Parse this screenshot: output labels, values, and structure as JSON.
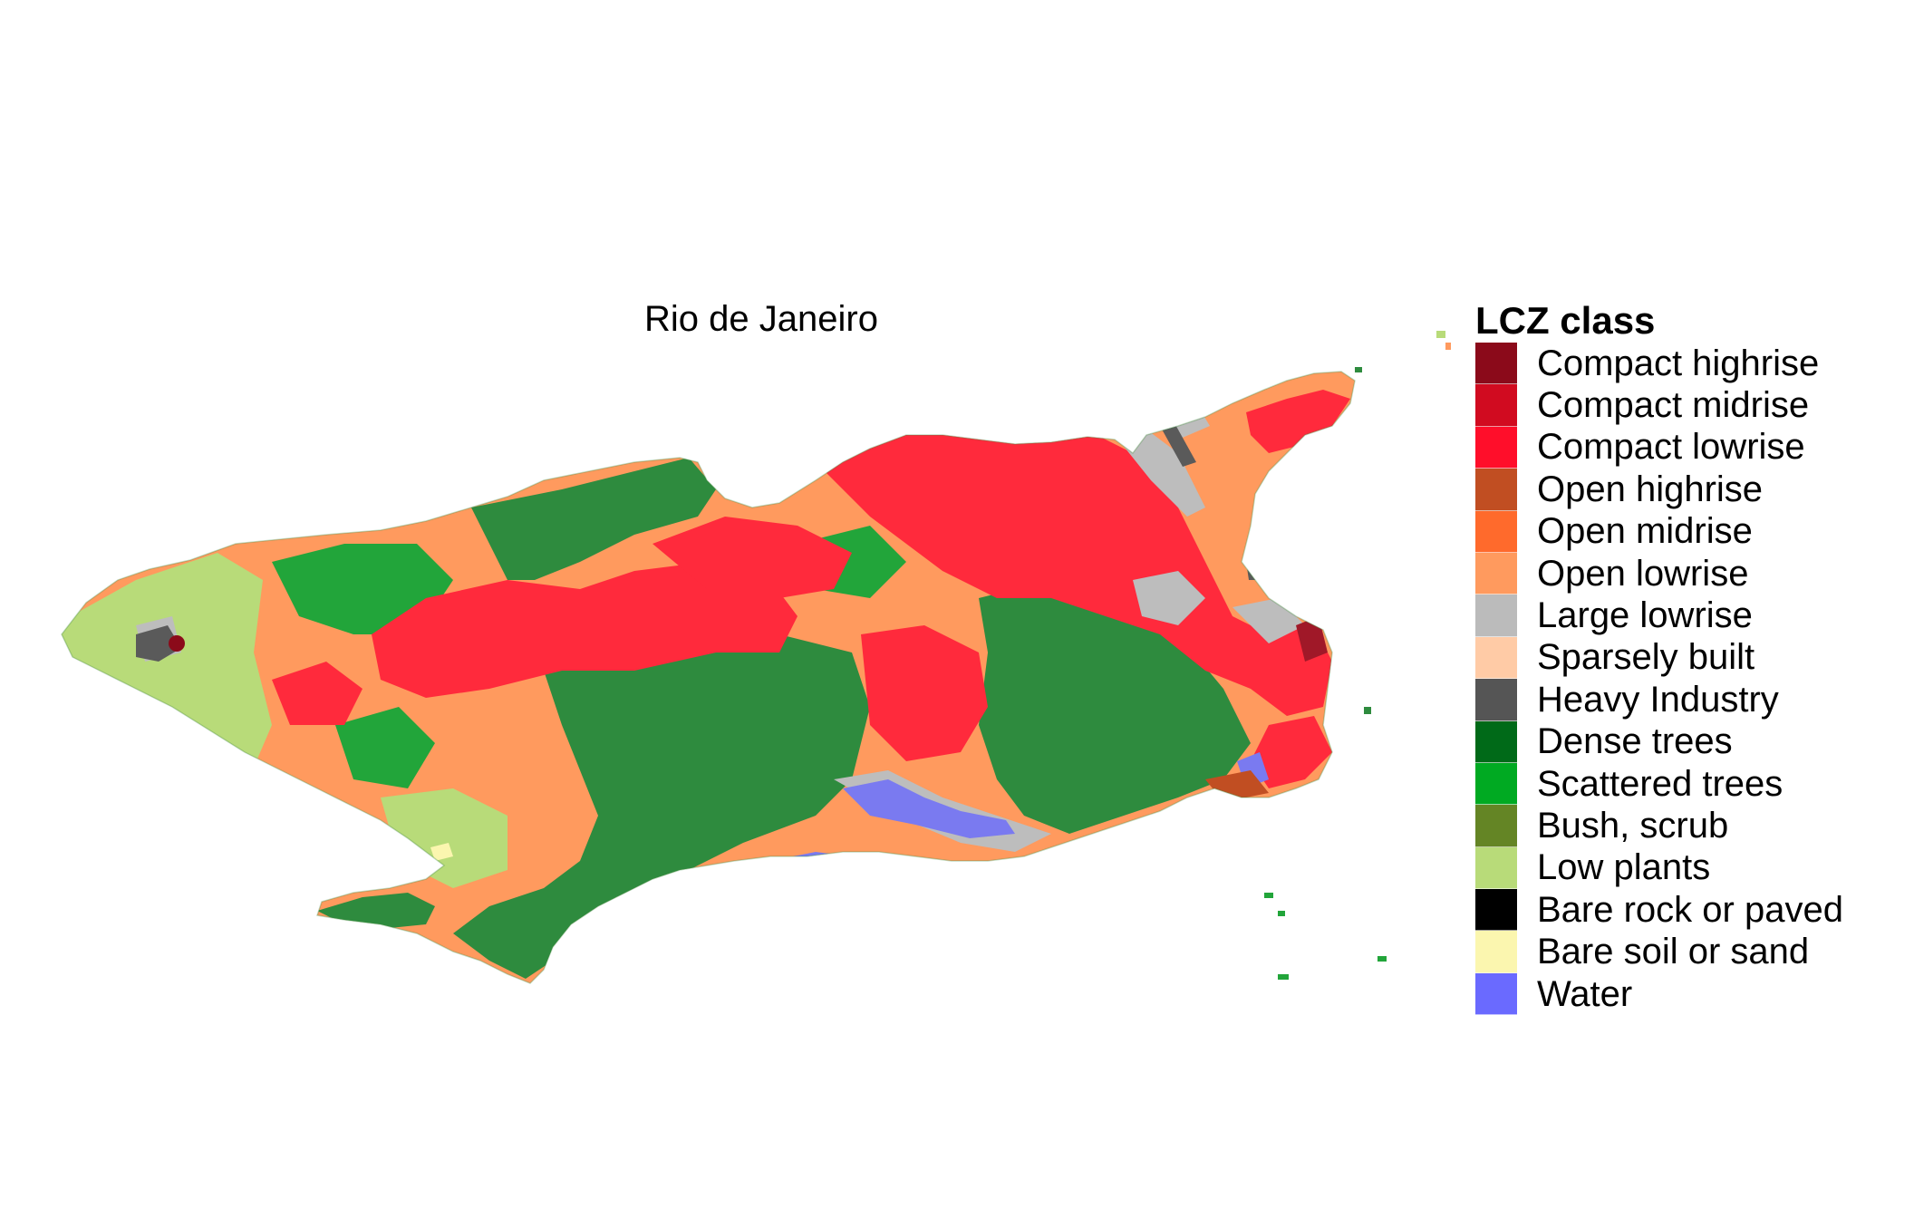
{
  "title": "Rio de Janeiro",
  "legend": {
    "title": "LCZ class",
    "items": [
      {
        "label": "Compact highrise",
        "color": "#8b0a1a"
      },
      {
        "label": "Compact midrise",
        "color": "#d10b20"
      },
      {
        "label": "Compact lowrise",
        "color": "#ff0e2a"
      },
      {
        "label": "Open highrise",
        "color": "#c14e22"
      },
      {
        "label": "Open midrise",
        "color": "#ff6a2c"
      },
      {
        "label": "Open lowrise",
        "color": "#ff9a5e"
      },
      {
        "label": "Large lowrise",
        "color": "#bbbbbb"
      },
      {
        "label": "Sparsely built",
        "color": "#ffcba6"
      },
      {
        "label": "Heavy Industry",
        "color": "#555555"
      },
      {
        "label": "Dense trees",
        "color": "#006a18"
      },
      {
        "label": "Scattered trees",
        "color": "#00aa22"
      },
      {
        "label": "Bush, scrub",
        "color": "#648525"
      },
      {
        "label": "Low plants",
        "color": "#b8db79"
      },
      {
        "label": "Bare rock or paved",
        "color": "#000000"
      },
      {
        "label": "Bare soil or sand",
        "color": "#fbf6af"
      },
      {
        "label": "Water",
        "color": "#6a6aff"
      }
    ]
  }
}
